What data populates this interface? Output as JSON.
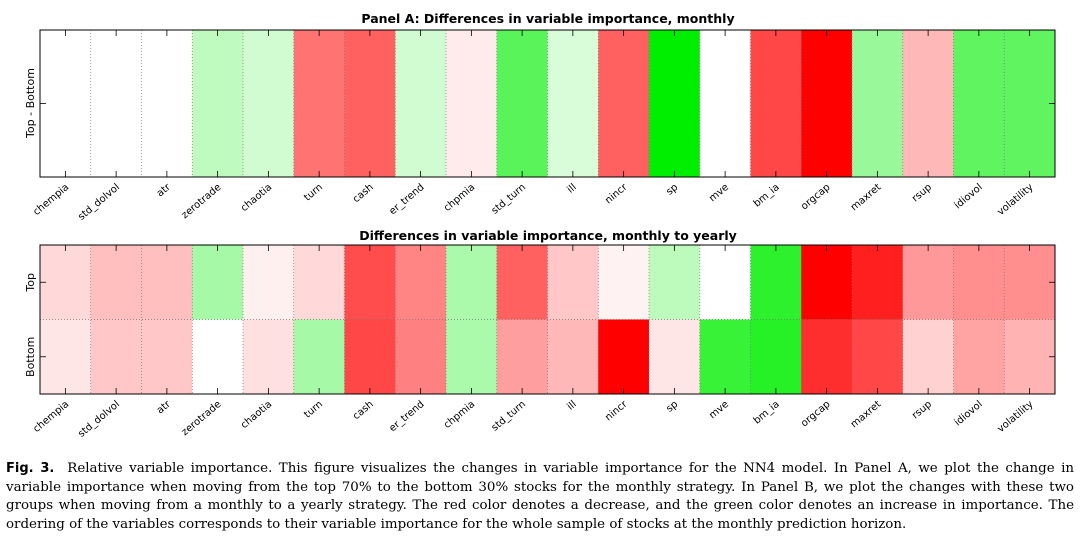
{
  "chart_data": [
    {
      "type": "heatmap",
      "title": "Panel A: Differences in variable importance, monthly",
      "ylabel": "Top - Bottom",
      "rows": [
        ""
      ],
      "categories": [
        "chempia",
        "std_dolvol",
        "atr",
        "zerotrade",
        "chaotia",
        "turn",
        "cash",
        "er_trend",
        "chpmia",
        "std_turn",
        "ill",
        "nincr",
        "sp",
        "mve",
        "bm_ia",
        "orgcap",
        "maxret",
        "rsup",
        "idiovol",
        "volatility"
      ],
      "values": [
        [
          0.0,
          0.0,
          0.0,
          0.25,
          0.18,
          -0.55,
          -0.62,
          0.18,
          -0.08,
          0.65,
          0.15,
          -0.62,
          1.0,
          0.0,
          -0.72,
          -1.0,
          0.4,
          -0.28,
          0.62,
          0.62
        ]
      ],
      "color_scale": {
        "negative": "#ff0000",
        "zero": "#ffffff",
        "positive": "#00ee00"
      }
    },
    {
      "type": "heatmap",
      "title": "Differences in variable importance, monthly to yearly",
      "ylabel": "",
      "rows": [
        "Top",
        "Bottom"
      ],
      "categories": [
        "chempia",
        "std_dolvol",
        "atr",
        "zerotrade",
        "chaotia",
        "turn",
        "cash",
        "er_trend",
        "chpmia",
        "std_turn",
        "ill",
        "nincr",
        "sp",
        "mve",
        "bm_ia",
        "orgcap",
        "maxret",
        "rsup",
        "idiovol",
        "volatility"
      ],
      "values": [
        [
          -0.15,
          -0.25,
          -0.25,
          0.35,
          -0.06,
          -0.15,
          -0.7,
          -0.48,
          0.33,
          -0.62,
          -0.22,
          -0.05,
          0.26,
          0.0,
          0.82,
          -1.0,
          -0.88,
          -0.4,
          -0.44,
          -0.44
        ],
        [
          -0.1,
          -0.22,
          -0.22,
          0.0,
          -0.12,
          0.35,
          -0.72,
          -0.5,
          0.33,
          -0.38,
          -0.28,
          -1.0,
          -0.1,
          0.78,
          0.85,
          -0.82,
          -0.72,
          -0.18,
          -0.36,
          -0.3
        ]
      ],
      "color_scale": {
        "negative": "#ff0000",
        "zero": "#ffffff",
        "positive": "#00ee00"
      }
    }
  ],
  "caption": {
    "label": "Fig. 3.",
    "text": "Relative variable importance. This figure visualizes the changes in variable importance for the NN4 model. In Panel A, we plot the change in variable importance when moving from the top 70% to the bottom 30% stocks for the monthly strategy. In Panel B, we plot the changes with these two groups when moving from a monthly to a yearly strategy. The red color denotes a decrease, and the green color denotes an increase in importance. The ordering of the variables corresponds to their variable importance for the whole sample of stocks at the monthly prediction horizon."
  }
}
